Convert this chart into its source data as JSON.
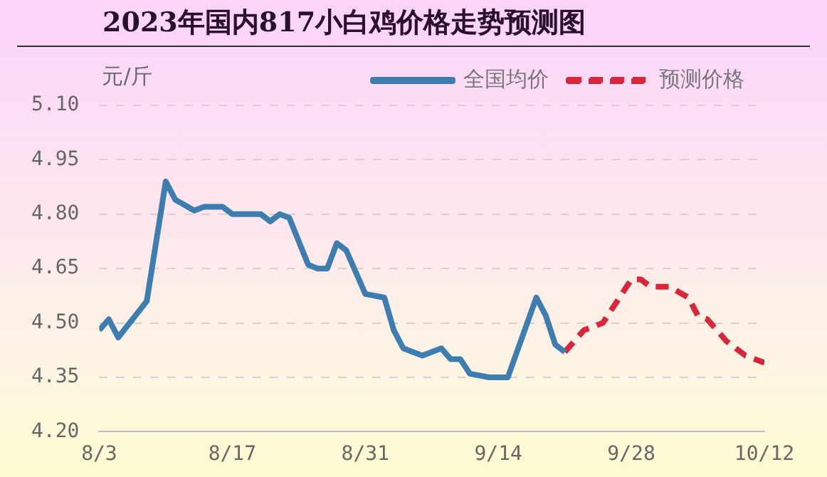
{
  "chart_data": {
    "type": "line",
    "title": "2023年国内817小白鸡价格走势预测图",
    "ylabel": "元/斤",
    "xlim": [
      "--08-03",
      "--10-12"
    ],
    "xticks": [
      {
        "value": "--08-03",
        "label": "8/3"
      },
      {
        "value": "--08-17",
        "label": "8/17"
      },
      {
        "value": "--08-31",
        "label": "8/31"
      },
      {
        "value": "--09-14",
        "label": "9/14"
      },
      {
        "value": "--09-28",
        "label": "9/28"
      },
      {
        "value": "--10-12",
        "label": "10/12"
      }
    ],
    "ylim": [
      4.2,
      5.1
    ],
    "yticks": [
      {
        "value": 4.2,
        "label": "4.20"
      },
      4.35,
      {
        "value": 4.5,
        "label": "4.50"
      },
      4.65,
      {
        "value": 4.8,
        "label": "4.80"
      },
      4.95,
      {
        "value": 5.1,
        "label": "5.10"
      }
    ],
    "grid": "y",
    "legend": "top right",
    "marker": "none",
    "series": [
      {
        "name": "全国均价",
        "color": "#3d7db0",
        "line_style": "solid",
        "x": [
          "--08-03",
          "--08-04",
          "--08-05",
          "--08-08",
          "--08-10",
          "--08-11",
          "--08-13",
          "--08-14",
          "--08-16",
          "--08-17",
          "--08-20",
          "--08-21",
          "--08-22",
          "--08-23",
          "--08-25",
          "--08-26",
          "--08-27",
          "--08-28",
          "--08-29",
          "--08-31",
          "--09-02",
          "--09-03",
          "--09-04",
          "--09-06",
          "--09-08",
          "--09-09",
          "--09-10",
          "--09-11",
          "--09-13",
          "--09-15",
          "--09-18",
          "--09-19",
          "--09-20",
          "--09-21"
        ],
        "values": [
          4.48,
          4.51,
          4.46,
          4.56,
          4.89,
          4.84,
          4.81,
          4.82,
          4.82,
          4.8,
          4.8,
          4.78,
          4.8,
          4.79,
          4.66,
          4.65,
          4.65,
          4.72,
          4.7,
          4.58,
          4.57,
          4.48,
          4.43,
          4.41,
          4.43,
          4.4,
          4.4,
          4.36,
          4.35,
          4.35,
          4.57,
          4.52,
          4.44,
          4.42
        ]
      },
      {
        "name": "预测价格",
        "color": "#d9263a",
        "line_style": "dashed",
        "x": [
          "--09-21",
          "--09-23",
          "--09-25",
          "--09-28",
          "--09-29",
          "--09-30",
          "--10-02",
          "--10-04",
          "--10-05",
          "--10-06",
          "--10-08",
          "--10-10",
          "--10-12"
        ],
        "values": [
          4.42,
          4.48,
          4.5,
          4.62,
          4.62,
          4.6,
          4.6,
          4.57,
          4.52,
          4.51,
          4.45,
          4.41,
          4.39
        ]
      }
    ]
  }
}
